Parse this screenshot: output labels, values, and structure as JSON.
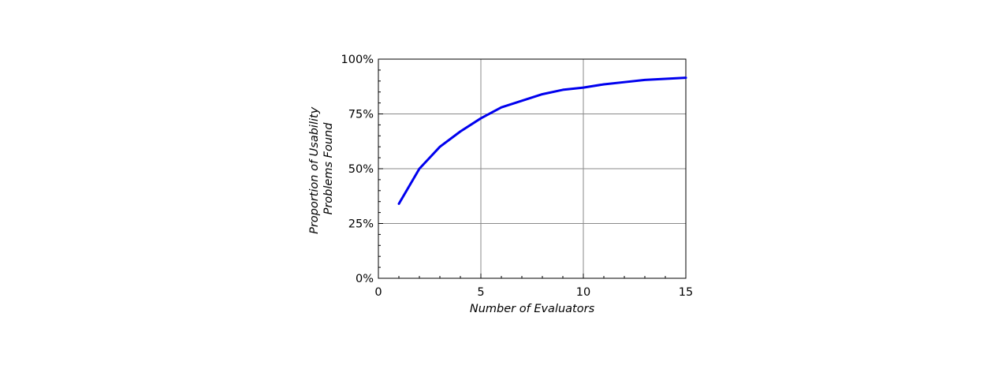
{
  "chart_data": {
    "type": "line",
    "xlabel": "Number of Evaluators",
    "ylabel_lines": [
      "Proportion of Usability",
      "Problems Found"
    ],
    "xlim": [
      0,
      15
    ],
    "ylim": [
      0,
      100
    ],
    "grid": true,
    "x_ticks": [
      0,
      5,
      10,
      15
    ],
    "x_tick_labels": [
      "0",
      "5",
      "10",
      "15"
    ],
    "y_ticks": [
      0,
      25,
      50,
      75,
      100
    ],
    "y_tick_labels": [
      "0%",
      "25%",
      "50%",
      "75%",
      "100%"
    ],
    "series": [
      {
        "color": "#0000ee",
        "x": [
          1,
          2,
          2.5,
          3,
          4,
          5,
          6,
          7,
          8,
          9,
          10,
          11,
          12,
          13,
          14,
          15
        ],
        "y": [
          34,
          50,
          55,
          60,
          67,
          73,
          78,
          81,
          84,
          86,
          87,
          88.5,
          89.5,
          90.5,
          91,
          91.5
        ]
      }
    ]
  }
}
